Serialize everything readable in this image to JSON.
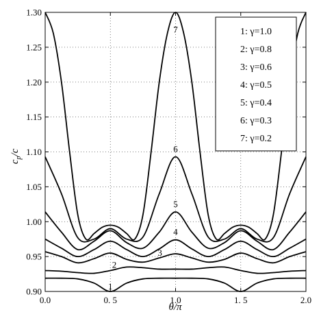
{
  "chart_data": {
    "type": "line",
    "xlabel": "θ/π",
    "ylabel": "c_p/c",
    "xlim": [
      0,
      2
    ],
    "ylim": [
      0.9,
      1.3
    ],
    "x_ticks": [
      "0.0",
      "0. 5",
      "1.0",
      "1. 5",
      "2.0"
    ],
    "y_ticks": [
      "0.90",
      "0.95",
      "1.00",
      "1.05",
      "1.10",
      "1.15",
      "1.20",
      "1.25",
      "1.30"
    ],
    "grid": true,
    "legend_position": "top-right",
    "legend": [
      "1: γ=1.0",
      "2: γ=0.8",
      "3: γ=0.6",
      "4: γ=0.5",
      "5: γ=0.4",
      "6: γ=0.3",
      "7: γ=0.2"
    ],
    "series": [
      {
        "label": "1",
        "x": [
          0,
          0.125,
          0.25,
          0.375,
          0.5,
          0.625,
          0.75,
          0.875,
          1.0,
          1.125,
          1.25,
          1.375,
          1.5,
          1.625,
          1.75,
          1.875,
          2.0
        ],
        "values": [
          0.919,
          0.919,
          0.918,
          0.912,
          0.9,
          0.912,
          0.918,
          0.919,
          0.919,
          0.919,
          0.918,
          0.912,
          0.9,
          0.912,
          0.918,
          0.919,
          0.919
        ]
      },
      {
        "label": "2",
        "x": [
          0,
          0.125,
          0.25,
          0.375,
          0.5,
          0.625,
          0.75,
          0.875,
          1.0,
          1.125,
          1.25,
          1.375,
          1.5,
          1.625,
          1.75,
          1.875,
          2.0
        ],
        "values": [
          0.93,
          0.929,
          0.927,
          0.926,
          0.93,
          0.935,
          0.934,
          0.932,
          0.932,
          0.932,
          0.934,
          0.935,
          0.93,
          0.926,
          0.927,
          0.929,
          0.93
        ]
      },
      {
        "label": "3",
        "x": [
          0,
          0.125,
          0.25,
          0.375,
          0.5,
          0.625,
          0.75,
          0.875,
          1.0,
          1.125,
          1.25,
          1.375,
          1.5,
          1.625,
          1.75,
          1.875,
          2.0
        ],
        "values": [
          0.957,
          0.95,
          0.941,
          0.947,
          0.955,
          0.946,
          0.942,
          0.948,
          0.954,
          0.948,
          0.942,
          0.946,
          0.955,
          0.947,
          0.941,
          0.95,
          0.957
        ]
      },
      {
        "label": "4",
        "x": [
          0,
          0.125,
          0.25,
          0.375,
          0.5,
          0.625,
          0.75,
          0.875,
          1.0,
          1.125,
          1.25,
          1.375,
          1.5,
          1.625,
          1.75,
          1.875,
          2.0
        ],
        "values": [
          0.975,
          0.962,
          0.95,
          0.96,
          0.972,
          0.96,
          0.95,
          0.961,
          0.974,
          0.961,
          0.95,
          0.96,
          0.972,
          0.96,
          0.95,
          0.962,
          0.975
        ]
      },
      {
        "label": "5",
        "x": [
          0,
          0.125,
          0.25,
          0.375,
          0.5,
          0.625,
          0.75,
          0.875,
          1.0,
          1.125,
          1.25,
          1.375,
          1.5,
          1.625,
          1.75,
          1.875,
          2.0
        ],
        "values": [
          1.014,
          0.985,
          0.96,
          0.972,
          0.987,
          0.97,
          0.962,
          0.985,
          1.014,
          0.985,
          0.962,
          0.97,
          0.987,
          0.972,
          0.96,
          0.985,
          1.014
        ]
      },
      {
        "label": "6",
        "x": [
          0,
          0.125,
          0.25,
          0.375,
          0.5,
          0.625,
          0.75,
          0.875,
          1.0,
          1.125,
          1.25,
          1.375,
          1.5,
          1.625,
          1.75,
          1.875,
          2.0
        ],
        "values": [
          1.093,
          1.04,
          0.977,
          0.975,
          0.99,
          0.975,
          0.978,
          1.04,
          1.093,
          1.04,
          0.978,
          0.975,
          0.99,
          0.975,
          0.977,
          1.04,
          1.093
        ]
      },
      {
        "label": "7",
        "x": [
          0,
          0.0625,
          0.125,
          0.1875,
          0.25,
          0.3125,
          0.375,
          0.4375,
          0.5,
          0.5625,
          0.625,
          0.6875,
          0.75,
          0.8125,
          0.875,
          0.9375,
          1.0,
          1.0625,
          1.125,
          1.1875,
          1.25,
          1.3125,
          1.375,
          1.4375,
          1.5,
          1.5625,
          1.625,
          1.6875,
          1.75,
          1.8125,
          1.875,
          1.9375,
          2.0
        ],
        "values": [
          1.3,
          1.27,
          1.2,
          1.1,
          1.01,
          0.975,
          0.983,
          0.992,
          0.995,
          0.992,
          0.983,
          0.975,
          1.01,
          1.1,
          1.2,
          1.27,
          1.3,
          1.27,
          1.2,
          1.1,
          1.01,
          0.975,
          0.983,
          0.992,
          0.995,
          0.992,
          0.983,
          0.975,
          1.01,
          1.1,
          1.2,
          1.27,
          1.3
        ]
      }
    ],
    "curve_labels": [
      {
        "text": "7",
        "x": 1.0,
        "y": 1.275
      },
      {
        "text": "6",
        "x": 1.0,
        "y": 1.104
      },
      {
        "text": "5",
        "x": 1.0,
        "y": 1.025
      },
      {
        "text": "4",
        "x": 1.0,
        "y": 0.985
      },
      {
        "text": "3",
        "x": 0.88,
        "y": 0.955
      },
      {
        "text": "2",
        "x": 0.53,
        "y": 0.938
      },
      {
        "text": "1",
        "x": 0.5,
        "y": 0.907
      }
    ]
  }
}
